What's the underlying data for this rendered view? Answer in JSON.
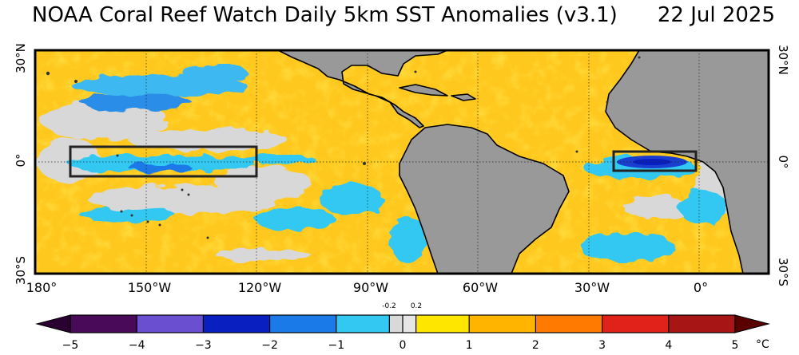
{
  "title": {
    "main": "NOAA Coral Reef Watch Daily 5km SST Anomalies  (v3.1)",
    "date": "22 Jul 2025"
  },
  "lat_labels": {
    "north": "30°N",
    "equator": "0°",
    "south": "30°S"
  },
  "lon_labels": [
    "180°",
    "150°W",
    "120°W",
    "90°W",
    "60°W",
    "30°W",
    "0°"
  ],
  "colorbar": {
    "ticks": [
      "−5",
      "−4",
      "−3",
      "−2",
      "−1",
      "0",
      "1",
      "2",
      "3",
      "4",
      "5"
    ],
    "small_ticks": [
      "-0.2",
      "0.2"
    ],
    "unit": "°C",
    "range": [
      -5,
      5
    ],
    "segments": [
      {
        "from": -5,
        "to": -4,
        "color": "#4a0a5a"
      },
      {
        "from": -4,
        "to": -3,
        "color": "#6a4fd0"
      },
      {
        "from": -3,
        "to": -2,
        "color": "#0a1fbf"
      },
      {
        "from": -2,
        "to": -1,
        "color": "#1a7ae8"
      },
      {
        "from": -1,
        "to": -0.2,
        "color": "#33c8f2"
      },
      {
        "from": -0.2,
        "to": 0,
        "color": "#d9d9d9"
      },
      {
        "from": 0,
        "to": 0.2,
        "color": "#e6e6e6"
      },
      {
        "from": 0.2,
        "to": 1,
        "color": "#ffe600"
      },
      {
        "from": 1,
        "to": 2,
        "color": "#ffb400"
      },
      {
        "from": 2,
        "to": 3,
        "color": "#ff7a00"
      },
      {
        "from": 3,
        "to": 4,
        "color": "#e0221a"
      },
      {
        "from": 4,
        "to": 5,
        "color": "#a81515"
      }
    ],
    "low_arrow_color": "#2a0030",
    "high_arrow_color": "#5a0000"
  },
  "map": {
    "land_color": "#999999",
    "ocean_base_color": "#ffc21a",
    "highlight_boxes": [
      {
        "name": "nino-3.4 region",
        "lon_range": [
          -170,
          -120
        ],
        "lat_range": [
          -5,
          5
        ]
      },
      {
        "name": "atlantic-3 region",
        "lon_range": [
          -20,
          0
        ],
        "lat_range": [
          -3,
          3
        ]
      }
    ]
  }
}
